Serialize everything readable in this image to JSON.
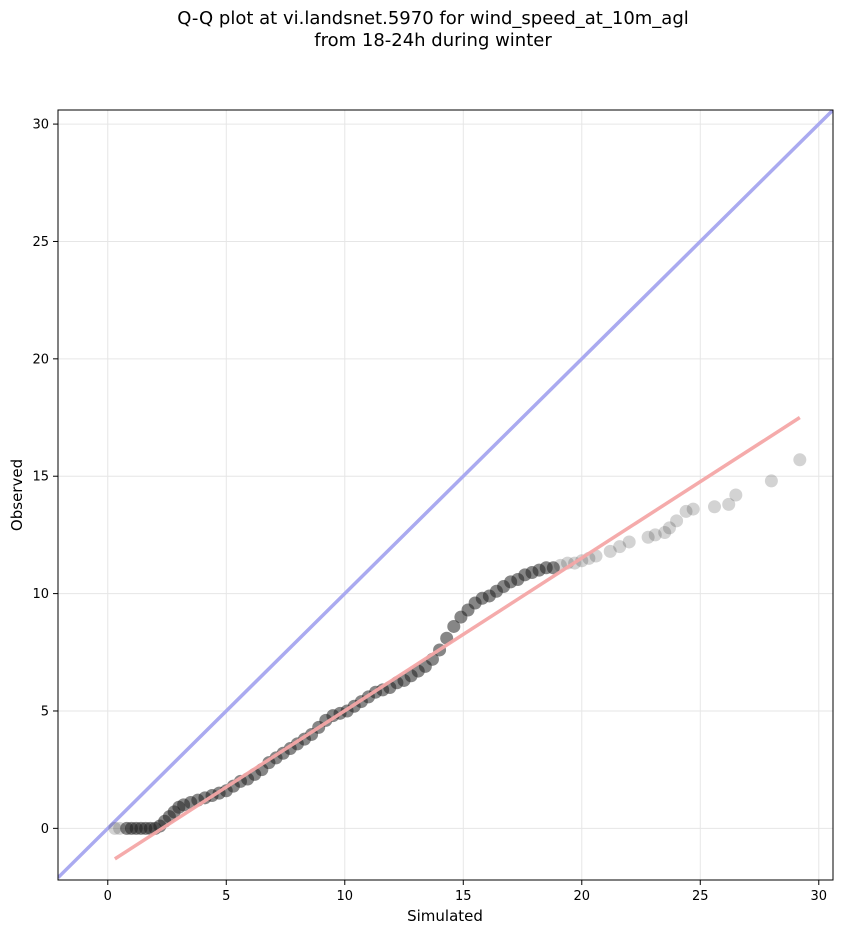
{
  "chart_data": {
    "type": "scatter",
    "title": [
      "Q-Q plot at vi.landsnet.5970 for wind_speed_at_10m_agl",
      "from 18-24h during winter"
    ],
    "xlabel": "Simulated",
    "ylabel": "Observed",
    "xlim": [
      -2.1,
      30.6
    ],
    "ylim": [
      -2.2,
      30.6
    ],
    "xticks": [
      0,
      5,
      10,
      15,
      20,
      25,
      30
    ],
    "yticks": [
      0,
      5,
      10,
      15,
      20,
      25,
      30
    ],
    "grid": true,
    "identity_line": {
      "x": [
        -2.1,
        30.6
      ],
      "y": [
        -2.1,
        30.6
      ],
      "color": "#aaaaf0"
    },
    "fit_line": {
      "x": [
        0.3,
        29.2
      ],
      "y": [
        -1.3,
        17.5
      ],
      "color": "#f4a7a7"
    },
    "marker_color": "#222222",
    "series": [
      {
        "x": [
          0.3,
          0.5,
          0.8,
          1.0,
          1.2,
          1.4,
          1.6,
          1.8,
          2.0,
          2.2,
          2.4,
          2.6,
          2.8,
          3.0,
          3.2,
          3.5,
          3.8,
          4.1,
          4.4,
          4.7,
          5.0,
          5.3,
          5.6,
          5.9,
          6.2,
          6.5,
          6.8,
          7.1,
          7.4,
          7.7,
          8.0,
          8.3,
          8.6,
          8.9,
          9.2,
          9.5,
          9.8,
          10.1,
          10.4,
          10.7,
          11.0,
          11.3,
          11.6,
          11.9,
          12.2,
          12.5,
          12.8,
          13.1,
          13.4,
          13.7,
          14.0,
          14.3,
          14.6,
          14.9,
          15.2,
          15.5,
          15.8,
          16.1,
          16.4,
          16.7,
          17.0,
          17.3,
          17.6,
          17.9,
          18.2,
          18.5,
          18.8,
          19.1,
          19.4,
          19.7,
          20.0,
          20.3,
          20.6,
          21.2,
          21.6,
          22.0,
          22.8,
          23.1,
          23.5,
          23.7,
          24.0,
          24.4,
          24.7,
          25.6,
          26.2,
          26.5,
          28.0,
          29.2
        ],
        "y": [
          0.0,
          0.0,
          0.0,
          0.0,
          0.0,
          0.0,
          0.0,
          0.0,
          0.0,
          0.1,
          0.3,
          0.5,
          0.7,
          0.9,
          1.0,
          1.1,
          1.2,
          1.3,
          1.4,
          1.5,
          1.6,
          1.8,
          2.0,
          2.1,
          2.3,
          2.5,
          2.8,
          3.0,
          3.2,
          3.4,
          3.6,
          3.8,
          4.0,
          4.3,
          4.6,
          4.8,
          4.9,
          5.0,
          5.2,
          5.4,
          5.6,
          5.8,
          5.9,
          6.0,
          6.2,
          6.3,
          6.5,
          6.7,
          6.9,
          7.2,
          7.6,
          8.1,
          8.6,
          9.0,
          9.3,
          9.6,
          9.8,
          9.9,
          10.1,
          10.3,
          10.5,
          10.6,
          10.8,
          10.9,
          11.0,
          11.1,
          11.1,
          11.2,
          11.3,
          11.3,
          11.4,
          11.5,
          11.6,
          11.8,
          12.0,
          12.2,
          12.4,
          12.5,
          12.6,
          12.8,
          13.1,
          13.5,
          13.6,
          13.7,
          13.8,
          14.2,
          14.8,
          15.7
        ]
      }
    ]
  }
}
